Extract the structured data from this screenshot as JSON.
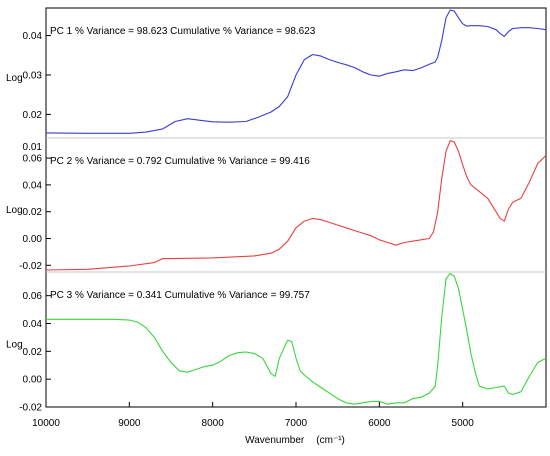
{
  "chart_data": {
    "type": "line",
    "xlabel": "Wavenumber",
    "xunit": "(cm⁻¹)",
    "x_ticks": [
      "10000",
      "9000",
      "8000",
      "7000",
      "6000",
      "5000"
    ],
    "xlim": [
      10000,
      4000
    ],
    "x_reversed": true,
    "grid": false,
    "legend": "none",
    "panels": [
      {
        "title": "PC 1   % Variance =     98.623 Cumulative % Variance =    98.623",
        "ylabel": "Log",
        "color": "#3b3bd6",
        "ylim": [
          0.014,
          0.047
        ],
        "y_ticks": [
          0.02,
          0.03,
          0.04
        ],
        "y_tick_labels": [
          "0.02",
          "0.03",
          "0.04"
        ],
        "x": [
          10000,
          9500,
          9000,
          8800,
          8600,
          8450,
          8300,
          8150,
          8000,
          7800,
          7600,
          7450,
          7300,
          7200,
          7100,
          7000,
          6900,
          6800,
          6700,
          6600,
          6500,
          6400,
          6300,
          6200,
          6100,
          6000,
          5900,
          5800,
          5700,
          5600,
          5500,
          5400,
          5330,
          5300,
          5250,
          5200,
          5150,
          5100,
          5050,
          5000,
          4950,
          4900,
          4800,
          4700,
          4600,
          4550,
          4500,
          4450,
          4400,
          4300,
          4200,
          4100,
          4000
        ],
        "values": [
          0.0153,
          0.0152,
          0.0152,
          0.0155,
          0.0163,
          0.0182,
          0.0189,
          0.0185,
          0.0181,
          0.018,
          0.0182,
          0.0193,
          0.0206,
          0.022,
          0.0245,
          0.03,
          0.0339,
          0.0352,
          0.0348,
          0.0339,
          0.0332,
          0.0326,
          0.0319,
          0.0308,
          0.03,
          0.0297,
          0.0304,
          0.0308,
          0.0313,
          0.0311,
          0.0318,
          0.0327,
          0.0333,
          0.0345,
          0.0388,
          0.0445,
          0.0465,
          0.0462,
          0.0445,
          0.043,
          0.0424,
          0.0425,
          0.0425,
          0.0423,
          0.0415,
          0.0405,
          0.0398,
          0.041,
          0.0418,
          0.042,
          0.042,
          0.0418,
          0.0415
        ]
      },
      {
        "title": "PC 2   % Variance =      0.792 Cumulative % Variance =    99.416",
        "ylabel": "Log",
        "color": "#e84141",
        "ylim": [
          -0.025,
          0.075
        ],
        "y_ticks": [
          -0.02,
          0.0,
          0.02,
          0.04,
          0.06
        ],
        "y_tick_labels": [
          "-0.02",
          "0.00",
          "0.02",
          "0.04",
          "0.06"
        ],
        "top_cut_label": "0.01",
        "x": [
          10000,
          9500,
          9000,
          8700,
          8600,
          8500,
          8000,
          7500,
          7300,
          7200,
          7100,
          7000,
          6900,
          6800,
          6700,
          6600,
          6500,
          6400,
          6300,
          6200,
          6100,
          6000,
          5900,
          5800,
          5700,
          5600,
          5500,
          5400,
          5350,
          5300,
          5250,
          5200,
          5150,
          5100,
          5050,
          5000,
          4950,
          4900,
          4800,
          4700,
          4600,
          4550,
          4500,
          4450,
          4400,
          4300,
          4200,
          4100,
          4000
        ],
        "values": [
          -0.0235,
          -0.023,
          -0.0205,
          -0.018,
          -0.015,
          -0.015,
          -0.0145,
          -0.013,
          -0.011,
          -0.008,
          -0.002,
          0.008,
          0.013,
          0.015,
          0.014,
          0.012,
          0.01,
          0.008,
          0.006,
          0.004,
          0.002,
          -0.001,
          -0.003,
          -0.005,
          -0.003,
          -0.002,
          -0.001,
          0.0,
          0.005,
          0.02,
          0.045,
          0.065,
          0.073,
          0.072,
          0.065,
          0.055,
          0.046,
          0.04,
          0.035,
          0.03,
          0.02,
          0.015,
          0.013,
          0.022,
          0.027,
          0.03,
          0.042,
          0.056,
          0.062
        ]
      },
      {
        "title": "PC 3   % Variance =      0.341 Cumulative % Variance =    99.757",
        "ylabel": "Log",
        "color": "#3ad63a",
        "ylim": [
          -0.02,
          0.077
        ],
        "y_ticks": [
          -0.02,
          0.0,
          0.02,
          0.04,
          0.06
        ],
        "y_tick_labels": [
          "-0.02",
          "0.00",
          "0.02",
          "0.04",
          "0.06"
        ],
        "x": [
          10000,
          9600,
          9200,
          9000,
          8900,
          8800,
          8700,
          8600,
          8500,
          8400,
          8300,
          8200,
          8100,
          8000,
          7900,
          7800,
          7700,
          7600,
          7500,
          7400,
          7300,
          7250,
          7200,
          7100,
          7050,
          7000,
          6950,
          6900,
          6800,
          6700,
          6600,
          6500,
          6400,
          6300,
          6200,
          6100,
          6000,
          5900,
          5800,
          5700,
          5600,
          5500,
          5400,
          5330,
          5300,
          5250,
          5200,
          5150,
          5100,
          5050,
          5000,
          4950,
          4900,
          4850,
          4800,
          4700,
          4600,
          4500,
          4450,
          4400,
          4300,
          4200,
          4100,
          4000
        ],
        "values": [
          0.043,
          0.043,
          0.043,
          0.0425,
          0.041,
          0.037,
          0.03,
          0.02,
          0.012,
          0.006,
          0.005,
          0.007,
          0.009,
          0.01,
          0.013,
          0.017,
          0.019,
          0.0195,
          0.0185,
          0.015,
          0.004,
          0.002,
          0.015,
          0.028,
          0.027,
          0.015,
          0.006,
          0.003,
          -0.002,
          -0.006,
          -0.01,
          -0.014,
          -0.017,
          -0.018,
          -0.017,
          -0.016,
          -0.016,
          -0.018,
          -0.017,
          -0.017,
          -0.014,
          -0.013,
          -0.01,
          -0.005,
          0.01,
          0.045,
          0.072,
          0.076,
          0.074,
          0.065,
          0.05,
          0.035,
          0.018,
          0.005,
          -0.005,
          -0.007,
          -0.006,
          -0.005,
          -0.01,
          -0.011,
          -0.009,
          0.002,
          0.012,
          0.015
        ]
      }
    ]
  }
}
